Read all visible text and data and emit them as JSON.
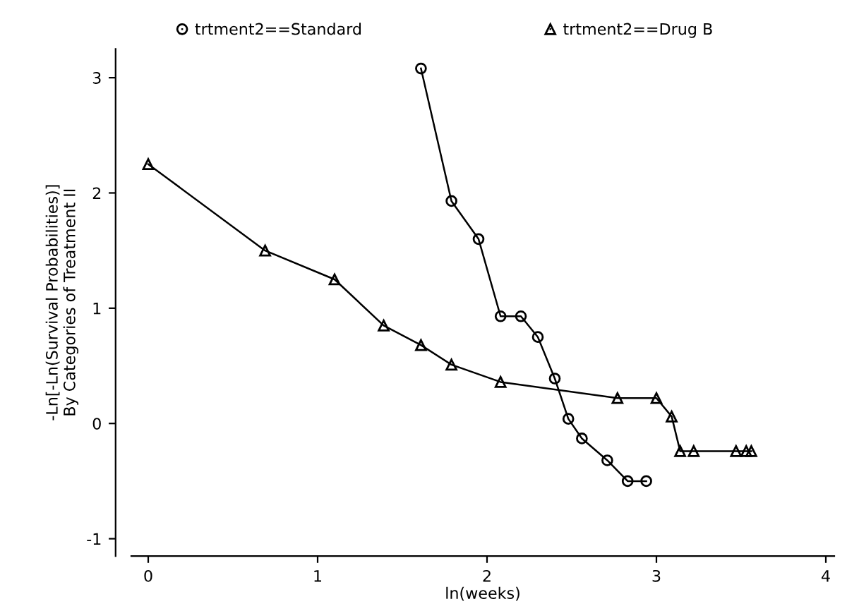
{
  "chart_data": {
    "type": "line",
    "xlabel": "ln(weeks)",
    "ylabel": "-Ln[-Ln(Survival Probabilities)]\nBy Categories of Treatment II",
    "xlim": [
      -0.1,
      4.05
    ],
    "ylim": [
      -1.15,
      3.25
    ],
    "xticks": [
      0,
      1,
      2,
      3,
      4
    ],
    "yticks": [
      -1,
      0,
      1,
      2,
      3
    ],
    "grid": false,
    "legend": "top",
    "line_style": "solid",
    "series": [
      {
        "name": "trtment2==Standard",
        "color": "#000000",
        "marker": "circle",
        "x": [
          1.61,
          1.79,
          1.95,
          2.08,
          2.2,
          2.3,
          2.4,
          2.48,
          2.56,
          2.71,
          2.83,
          2.94
        ],
        "values": [
          3.08,
          1.93,
          1.6,
          0.93,
          0.93,
          0.75,
          0.39,
          0.04,
          -0.13,
          -0.32,
          -0.5,
          -0.5
        ]
      },
      {
        "name": "trtment2==Drug B",
        "color": "#000000",
        "marker": "triangle",
        "x": [
          0,
          0.69,
          1.1,
          1.39,
          1.61,
          1.79,
          2.08,
          2.77,
          3.0,
          3.09,
          3.14,
          3.22,
          3.47,
          3.53,
          3.56
        ],
        "values": [
          2.25,
          1.5,
          1.25,
          0.85,
          0.68,
          0.51,
          0.36,
          0.22,
          0.22,
          0.06,
          -0.24,
          -0.24,
          -0.24,
          -0.24,
          -0.24
        ]
      }
    ]
  }
}
